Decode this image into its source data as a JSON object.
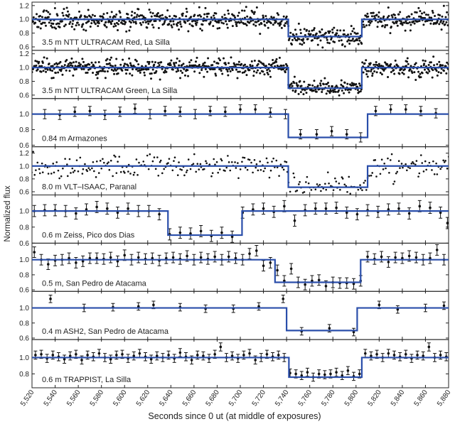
{
  "figure": {
    "xlabel": "Seconds since 0 ut (at middle of exposures)",
    "ylabel": "Normalized flux",
    "xlim": [
      5520,
      5880
    ],
    "xticks": [
      5520,
      5540,
      5560,
      5580,
      5600,
      5620,
      5640,
      5660,
      5680,
      5700,
      5720,
      5740,
      5760,
      5780,
      5800,
      5820,
      5840,
      5860,
      5880
    ],
    "xtick_labels": [
      "5,520",
      "5,540",
      "5,560",
      "5,580",
      "5,600",
      "5,620",
      "5,640",
      "5,660",
      "5,680",
      "5,700",
      "5,720",
      "5,740",
      "5,760",
      "5,780",
      "5,800",
      "5,820",
      "5,840",
      "5,860",
      "5,880"
    ],
    "colors": {
      "model": "#2a4eaa",
      "points": "#111111",
      "axis": "#222222"
    }
  },
  "chart_data": [
    {
      "type": "scatter",
      "label": "3.5 m NTT ULTRACAM Red, La Silla",
      "style": "dense",
      "ylim": [
        0.55,
        1.25
      ],
      "yticks": [
        0.6,
        0.8,
        1.0,
        1.2
      ],
      "ytick_labels": [
        "0.6",
        "0.8",
        "1.0",
        "1.2"
      ],
      "baseline": 1.0,
      "depth": 0.25,
      "ingress": 5741.5,
      "egress": 5805,
      "scatter": 0.07,
      "cadence": 0.5,
      "seed": 11
    },
    {
      "type": "scatter",
      "label": "3.5 m NTT ULTRACAM Green, La Silla",
      "style": "dense",
      "ylim": [
        0.55,
        1.25
      ],
      "yticks": [
        0.6,
        0.8,
        1.0,
        1.2
      ],
      "ytick_labels": [
        "0.6",
        "0.8",
        "1.0",
        "1.2"
      ],
      "baseline": 1.0,
      "depth": 0.3,
      "ingress": 5741.5,
      "egress": 5805,
      "scatter": 0.06,
      "cadence": 0.5,
      "seed": 23
    },
    {
      "type": "scatter",
      "label": "0.84 m Armazones",
      "style": "errorbars",
      "ylim": [
        0.58,
        1.2
      ],
      "yticks": [
        0.6,
        0.8,
        1.0
      ],
      "ytick_labels": [
        "0.6",
        "0.8",
        "1.0"
      ],
      "baseline": 1.0,
      "depth": 0.3,
      "ingress": 5741.5,
      "egress": 5810,
      "points": [
        [
          5531,
          1.0
        ],
        [
          5544,
          0.99
        ],
        [
          5557,
          1.03
        ],
        [
          5570,
          1.04
        ],
        [
          5583,
          0.99
        ],
        [
          5596,
          1.03
        ],
        [
          5609,
          1.07
        ],
        [
          5622,
          1.0
        ],
        [
          5635,
          1.04
        ],
        [
          5648,
          1.03
        ],
        [
          5661,
          1.0
        ],
        [
          5674,
          1.04
        ],
        [
          5687,
          1.03
        ],
        [
          5700,
          1.06
        ],
        [
          5713,
          1.06
        ],
        [
          5726,
          1.02
        ],
        [
          5739,
          1.0
        ],
        [
          5752,
          0.74
        ],
        [
          5766,
          0.74
        ],
        [
          5779,
          0.78
        ],
        [
          5792,
          0.74
        ],
        [
          5804,
          0.7
        ],
        [
          5817,
          1.04
        ],
        [
          5830,
          1.06
        ],
        [
          5843,
          1.06
        ],
        [
          5856,
          1.04
        ],
        [
          5869,
          1.01
        ]
      ],
      "err": 0.06
    },
    {
      "type": "scatter",
      "label": "8.0 m VLT–ISAAC, Paranal",
      "style": "sparse",
      "ylim": [
        0.55,
        1.3
      ],
      "yticks": [
        0.6,
        0.8,
        1.0,
        1.2
      ],
      "ytick_labels": [
        "0.6",
        "0.8",
        "1.0",
        "1.2"
      ],
      "baseline": 1.0,
      "depth": 0.33,
      "ingress": 5741.5,
      "egress": 5810,
      "scatter": 0.09,
      "cadence": 1.2,
      "seed": 37
    },
    {
      "type": "scatter",
      "label": "0.6 m Zeiss, Pico dos Dias",
      "style": "errorbars",
      "ylim": [
        0.6,
        1.2
      ],
      "yticks": [
        0.6,
        0.8,
        1.0
      ],
      "ytick_labels": [
        "0.6",
        "0.8",
        "1.0"
      ],
      "baseline": 1.0,
      "depth": 0.3,
      "ingress": 5637.5,
      "egress": 5701.5,
      "points": [
        [
          5522,
          1.0
        ],
        [
          5531,
          1.01
        ],
        [
          5540,
          1.01
        ],
        [
          5549,
          1.0
        ],
        [
          5558,
          0.97
        ],
        [
          5567,
          1.02
        ],
        [
          5576,
          1.05
        ],
        [
          5585,
          1.03
        ],
        [
          5594,
          0.98
        ],
        [
          5603,
          1.03
        ],
        [
          5612,
          1.0
        ],
        [
          5621,
          1.0
        ],
        [
          5630,
          0.96
        ],
        [
          5639,
          0.71
        ],
        [
          5648,
          0.73
        ],
        [
          5657,
          0.72
        ],
        [
          5666,
          0.75
        ],
        [
          5675,
          0.69
        ],
        [
          5684,
          0.73
        ],
        [
          5693,
          0.68
        ],
        [
          5702,
          0.98
        ],
        [
          5711,
          1.02
        ],
        [
          5720,
          1.03
        ],
        [
          5729,
          0.99
        ],
        [
          5738,
          1.06
        ],
        [
          5747,
          0.88
        ],
        [
          5756,
          1.01
        ],
        [
          5765,
          1.03
        ],
        [
          5774,
          1.03
        ],
        [
          5783,
          1.04
        ],
        [
          5792,
          0.98
        ],
        [
          5801,
          0.96
        ],
        [
          5810,
          1.01
        ],
        [
          5819,
          0.99
        ],
        [
          5828,
          1.02
        ],
        [
          5837,
          1.03
        ],
        [
          5846,
          0.97
        ],
        [
          5855,
          1.06
        ],
        [
          5864,
          1.04
        ],
        [
          5873,
          0.98
        ],
        [
          5879,
          0.85
        ]
      ],
      "err": 0.07
    },
    {
      "type": "scatter",
      "label": "0.5 m, San Pedro de Atacama",
      "style": "errorbars",
      "ylim": [
        0.58,
        1.22
      ],
      "yticks": [
        0.6,
        0.8,
        1.0
      ],
      "ytick_labels": [
        "0.6",
        "0.8",
        "1.0"
      ],
      "baseline": 1.0,
      "depth": 0.3,
      "ingress": 5730,
      "egress": 5804,
      "points": [
        [
          5522,
          1.1
        ],
        [
          5528,
          1.0
        ],
        [
          5534,
          0.94
        ],
        [
          5540,
          0.99
        ],
        [
          5546,
          1.0
        ],
        [
          5552,
          1.02
        ],
        [
          5558,
          0.96
        ],
        [
          5564,
          0.98
        ],
        [
          5570,
          1.02
        ],
        [
          5576,
          1.02
        ],
        [
          5582,
          1.01
        ],
        [
          5588,
          1.03
        ],
        [
          5594,
          0.98
        ],
        [
          5600,
          1.06
        ],
        [
          5606,
          1.0
        ],
        [
          5612,
          1.03
        ],
        [
          5618,
          1.01
        ],
        [
          5624,
          1.02
        ],
        [
          5630,
          0.99
        ],
        [
          5636,
          1.02
        ],
        [
          5642,
          1.03
        ],
        [
          5648,
          1.01
        ],
        [
          5654,
          1.05
        ],
        [
          5660,
          1.0
        ],
        [
          5666,
          1.03
        ],
        [
          5672,
          1.01
        ],
        [
          5678,
          1.04
        ],
        [
          5684,
          1.0
        ],
        [
          5690,
          1.04
        ],
        [
          5696,
          1.02
        ],
        [
          5702,
          1.0
        ],
        [
          5708,
          1.08
        ],
        [
          5714,
          1.12
        ],
        [
          5720,
          0.92
        ],
        [
          5726,
          0.96
        ],
        [
          5732,
          0.86
        ],
        [
          5738,
          0.72
        ],
        [
          5744,
          0.88
        ],
        [
          5750,
          0.7
        ],
        [
          5756,
          0.67
        ],
        [
          5762,
          0.72
        ],
        [
          5768,
          0.73
        ],
        [
          5774,
          0.65
        ],
        [
          5780,
          0.7
        ],
        [
          5786,
          0.69
        ],
        [
          5792,
          0.69
        ],
        [
          5798,
          0.68
        ],
        [
          5804,
          0.72
        ],
        [
          5810,
          1.04
        ],
        [
          5816,
          1.01
        ],
        [
          5822,
          1.04
        ],
        [
          5828,
          0.97
        ],
        [
          5834,
          1.03
        ],
        [
          5840,
          1.02
        ],
        [
          5846,
          1.05
        ],
        [
          5852,
          1.03
        ],
        [
          5858,
          1.0
        ],
        [
          5864,
          1.02
        ],
        [
          5870,
          1.13
        ],
        [
          5876,
          1.0
        ]
      ],
      "err": 0.07
    },
    {
      "type": "scatter",
      "label": "0.4 m ASH2, San Pedro de Atacama",
      "style": "errorbars",
      "ylim": [
        0.58,
        1.22
      ],
      "yticks": [
        0.6,
        0.8,
        1.0
      ],
      "ytick_labels": [
        "0.6",
        "0.8",
        "1.0"
      ],
      "baseline": 1.0,
      "depth": 0.3,
      "ingress": 5740,
      "egress": 5801,
      "points": [
        [
          5536,
          1.12
        ],
        [
          5565,
          1.0
        ],
        [
          5590,
          1.01
        ],
        [
          5612,
          1.02
        ],
        [
          5625,
          1.04
        ],
        [
          5648,
          1.01
        ],
        [
          5670,
          0.99
        ],
        [
          5694,
          0.99
        ],
        [
          5716,
          1.02
        ],
        [
          5737,
          1.12
        ],
        [
          5753,
          0.69
        ],
        [
          5777,
          0.73
        ],
        [
          5798,
          0.68
        ],
        [
          5820,
          1.04
        ],
        [
          5836,
          0.98
        ],
        [
          5860,
          1.0
        ],
        [
          5876,
          1.03
        ]
      ],
      "err": 0.05
    },
    {
      "type": "scatter",
      "label": "0.6 m TRAPPIST, La Silla",
      "style": "errorbars",
      "ylim": [
        0.63,
        1.22
      ],
      "yticks": [
        0.8,
        1.0
      ],
      "ytick_labels": [
        "0.8",
        "1.0"
      ],
      "baseline": 1.0,
      "depth": 0.24,
      "ingress": 5742,
      "egress": 5805,
      "points": [
        [
          5523,
          1.03
        ],
        [
          5528,
          1.04
        ],
        [
          5533,
          0.99
        ],
        [
          5538,
          1.03
        ],
        [
          5543,
          1.01
        ],
        [
          5548,
          0.98
        ],
        [
          5553,
          1.02
        ],
        [
          5558,
          1.04
        ],
        [
          5563,
          0.97
        ],
        [
          5568,
          1.03
        ],
        [
          5573,
          1.01
        ],
        [
          5578,
          1.05
        ],
        [
          5583,
          1.0
        ],
        [
          5588,
          0.98
        ],
        [
          5593,
          1.03
        ],
        [
          5598,
          1.04
        ],
        [
          5603,
          0.99
        ],
        [
          5608,
          1.02
        ],
        [
          5613,
          1.05
        ],
        [
          5618,
          1.01
        ],
        [
          5623,
          0.98
        ],
        [
          5628,
          1.02
        ],
        [
          5633,
          1.0
        ],
        [
          5638,
          1.03
        ],
        [
          5643,
          0.99
        ],
        [
          5648,
          1.06
        ],
        [
          5653,
          1.01
        ],
        [
          5658,
          0.97
        ],
        [
          5663,
          1.03
        ],
        [
          5668,
          1.02
        ],
        [
          5673,
          0.99
        ],
        [
          5678,
          1.04
        ],
        [
          5683,
          1.13
        ],
        [
          5688,
          1.0
        ],
        [
          5693,
          1.02
        ],
        [
          5698,
          0.99
        ],
        [
          5703,
          1.03
        ],
        [
          5708,
          1.05
        ],
        [
          5713,
          0.97
        ],
        [
          5718,
          1.0
        ],
        [
          5723,
          1.04
        ],
        [
          5728,
          1.01
        ],
        [
          5733,
          1.03
        ],
        [
          5738,
          1.0
        ],
        [
          5743,
          0.81
        ],
        [
          5748,
          0.8
        ],
        [
          5753,
          0.78
        ],
        [
          5758,
          0.82
        ],
        [
          5763,
          0.76
        ],
        [
          5768,
          0.8
        ],
        [
          5773,
          0.79
        ],
        [
          5778,
          0.8
        ],
        [
          5783,
          0.82
        ],
        [
          5788,
          0.78
        ],
        [
          5793,
          0.84
        ],
        [
          5798,
          0.77
        ],
        [
          5803,
          0.8
        ],
        [
          5808,
          1.05
        ],
        [
          5813,
          1.02
        ],
        [
          5818,
          1.04
        ],
        [
          5823,
          1.0
        ],
        [
          5828,
          1.05
        ],
        [
          5833,
          1.03
        ],
        [
          5838,
          1.01
        ],
        [
          5843,
          1.04
        ],
        [
          5848,
          0.99
        ],
        [
          5853,
          1.03
        ],
        [
          5858,
          1.02
        ],
        [
          5863,
          1.13
        ],
        [
          5868,
          1.0
        ],
        [
          5873,
          1.03
        ],
        [
          5878,
          1.01
        ]
      ],
      "err": 0.05
    }
  ]
}
